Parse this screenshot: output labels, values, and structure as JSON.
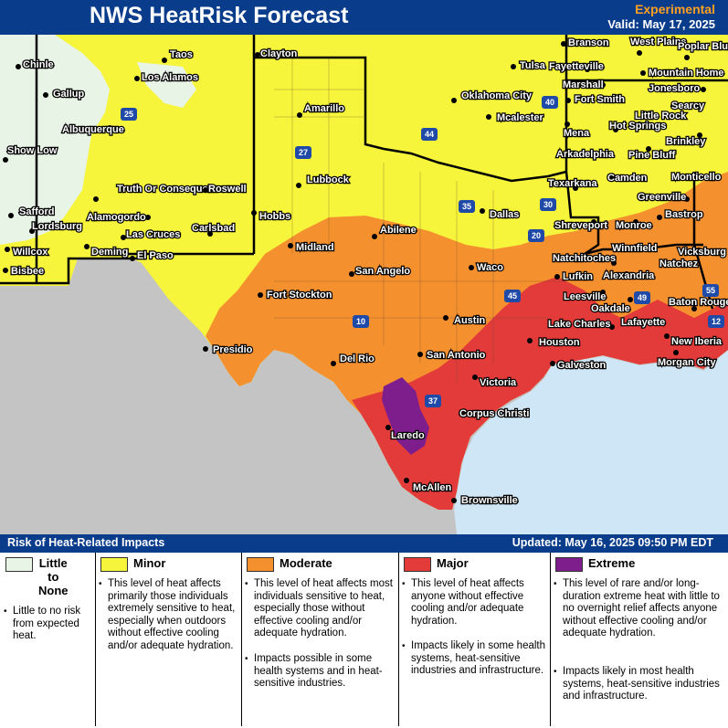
{
  "header": {
    "title": "NWS HeatRisk Forecast",
    "experimental": "Experimental",
    "valid": "Valid: May 17, 2025"
  },
  "legend_bar": {
    "left": "Risk of Heat-Related Impacts",
    "right": "Updated: May 16, 2025 09:50 PM EDT"
  },
  "colors": {
    "none": "#e8f5e6",
    "minor": "#f7f43c",
    "moderate": "#f5902e",
    "major": "#e33a3a",
    "extreme": "#7d1e8c",
    "outside": "#c4c4c4",
    "water": "#cfe6f7"
  },
  "categories": [
    {
      "name": "Little\nto\nNone",
      "color": "#e8f5e6",
      "descriptions": [
        "Little to no risk from expected heat."
      ]
    },
    {
      "name": "Minor",
      "color": "#f7f43c",
      "descriptions": [
        "This level of heat affects primarily those individuals extremely sensitive to heat, especially when outdoors without effective cooling and/or adequate hydration."
      ]
    },
    {
      "name": "Moderate",
      "color": "#f5902e",
      "descriptions": [
        "This level of heat affects most individuals sensitive to heat, especially those without effective cooling and/or adequate hydration.",
        "Impacts possible in some health systems and in heat-sensitive industries."
      ]
    },
    {
      "name": "Major",
      "color": "#e33a3a",
      "descriptions": [
        "This level of heat affects anyone without effective cooling and/or adequate hydration.",
        "Impacts likely in some health systems, heat-sensitive industries and infrastructure."
      ]
    },
    {
      "name": "Extreme",
      "color": "#7d1e8c",
      "descriptions": [
        "This level of rare and/or long-duration extreme heat with little to no overnight relief affects anyone without effective cooling and/or adequate hydration.",
        "Impacts likely in most health systems, heat-sensitive industries and infrastructure."
      ]
    }
  ],
  "cities": [
    "Taos",
    "Clayton",
    "Branson",
    "West Plains",
    "Poplar Bluff",
    "Chinle",
    "Los Alamos",
    "Tulsa",
    "Fayetteville",
    "Mountain Home",
    "Gallup",
    "Marshall",
    "Jonesboro",
    "Amarillo",
    "Oklahoma City",
    "Fort Smith",
    "Albuquerque",
    "Mcalester",
    "Little Rock",
    "Searcy",
    "Hot Springs",
    "Mena",
    "Brinkley",
    "Show Low",
    "Arkadelphia",
    "Pine Bluff",
    "Lubbock",
    "Camden",
    "Monticello",
    "Truth Or Consequences",
    "Roswell",
    "Texarkana",
    "Greenville",
    "Safford",
    "Dallas",
    "Alamogordo",
    "Hobbs",
    "Carlsbad",
    "Abilene",
    "Shreveport",
    "Monroe",
    "Bastrop",
    "Lordsburg",
    "Las Cruces",
    "Vicksburg",
    "Willcox",
    "Deming",
    "El Paso",
    "Midland",
    "Winnfield",
    "Natchez",
    "Bisbee",
    "Natchitoches",
    "San Angelo",
    "Waco",
    "Lufkin",
    "Alexandria",
    "Fort Stockton",
    "Leesville",
    "Oakdale",
    "Baton Rouge",
    "Austin",
    "Lake Charles",
    "Lafayette",
    "Presidio",
    "Houston",
    "New Iberia",
    "Del Rio",
    "San Antonio",
    "Galveston",
    "Morgan City",
    "Victoria",
    "Corpus Christi",
    "Laredo",
    "McAllen",
    "Brownsville"
  ],
  "interstates": [
    "25",
    "40",
    "27",
    "44",
    "35",
    "30",
    "20",
    "10",
    "45",
    "49",
    "55",
    "12",
    "37"
  ]
}
